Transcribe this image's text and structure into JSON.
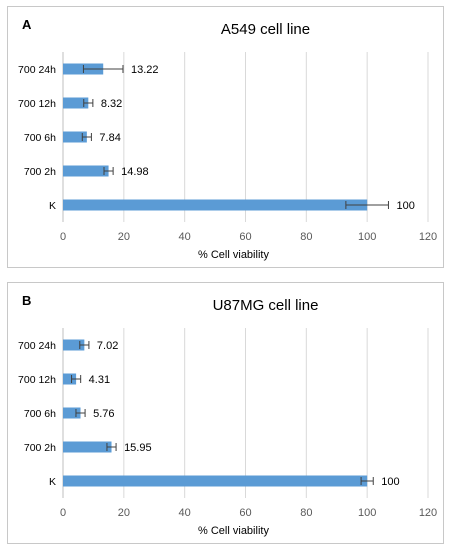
{
  "panels": [
    {
      "letter": "A"
    },
    {
      "letter": "B"
    }
  ],
  "colors": {
    "bar": "#5b9bd5",
    "grid": "#d9d9d9",
    "error": "#404040"
  },
  "chart_data": [
    {
      "type": "bar",
      "orientation": "horizontal",
      "title": "A549 cell line",
      "xlabel": "% Cell viability",
      "ylabel": "",
      "categories": [
        "700 24h",
        "700 12h",
        "700 6h",
        "700 2h",
        "K"
      ],
      "values": [
        13.22,
        8.32,
        7.84,
        14.98,
        100
      ],
      "data_labels": [
        "13.22",
        "8.32",
        "7.84",
        "14.98",
        "100"
      ],
      "error_bars": [
        6.5,
        1.5,
        1.5,
        1.5,
        7
      ],
      "xlim": [
        0,
        120
      ],
      "xticks": [
        0,
        20,
        40,
        60,
        80,
        100,
        120
      ],
      "grid": true,
      "legend": "none"
    },
    {
      "type": "bar",
      "orientation": "horizontal",
      "title": "U87MG cell line",
      "xlabel": "% Cell viability",
      "ylabel": "",
      "categories": [
        "700 24h",
        "700 12h",
        "700 6h",
        "700 2h",
        "K"
      ],
      "values": [
        7.02,
        4.31,
        5.76,
        15.95,
        100
      ],
      "data_labels": [
        "7.02",
        "4.31",
        "5.76",
        "15.95",
        "100"
      ],
      "error_bars": [
        1.5,
        1.5,
        1.5,
        1.5,
        2
      ],
      "xlim": [
        0,
        120
      ],
      "xticks": [
        0,
        20,
        40,
        60,
        80,
        100,
        120
      ],
      "grid": true,
      "legend": "none"
    }
  ]
}
